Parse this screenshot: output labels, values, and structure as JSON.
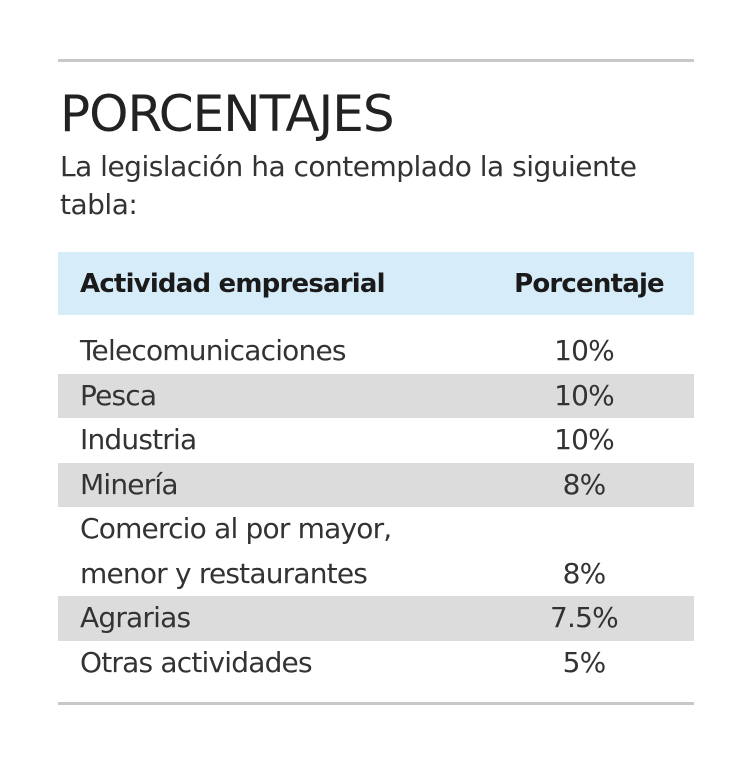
{
  "title": "PORCENTAJES",
  "subtitle": "La legislación ha contemplado la siguiente tabla:",
  "table": {
    "headers": [
      "Actividad empresarial",
      "Porcentaje"
    ],
    "rows": [
      {
        "actividad": "Telecomunicaciones",
        "porcentaje": "10%"
      },
      {
        "actividad": "Pesca",
        "porcentaje": "10%"
      },
      {
        "actividad": "Industria",
        "porcentaje": "10%"
      },
      {
        "actividad": "Minería",
        "porcentaje": "8%"
      },
      {
        "actividad_line1": "Comercio al por mayor,",
        "actividad_line2": "menor y restaurantes",
        "porcentaje": "8%"
      },
      {
        "actividad": "Agrarias",
        "porcentaje": "7.5%"
      },
      {
        "actividad": "Otras actividades",
        "porcentaje": "5%"
      }
    ]
  },
  "colors": {
    "header_bg": "#d6ecf8",
    "stripe_bg": "#dcdcdc",
    "rule": "#c8c8c8"
  }
}
